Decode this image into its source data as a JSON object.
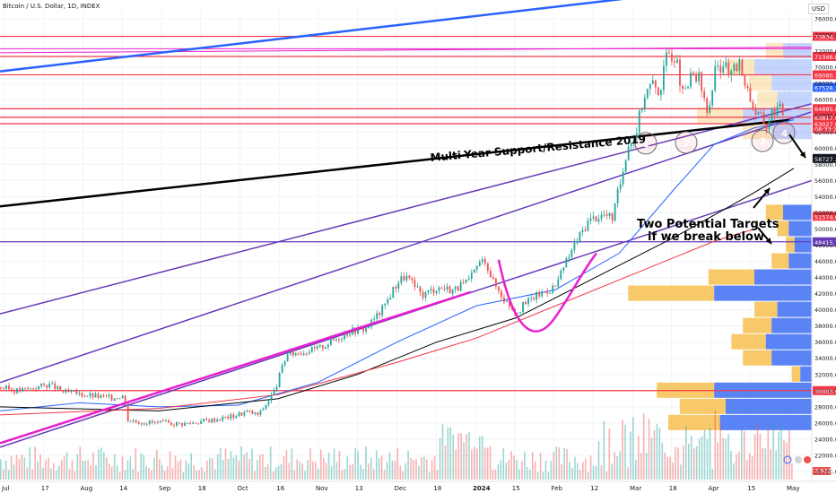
{
  "header": {
    "title": "Bitcoin / U.S. Dollar, 1D, INDEX",
    "currency": "USD"
  },
  "colors": {
    "up": "#26a69a",
    "down": "#ef5350",
    "accent": "#2962ff",
    "resistance": "#f23645",
    "channel": "#673ab7",
    "magenta": "#e91ecf",
    "trend_blue": "#2962ff",
    "ma_blue": "#2962ff",
    "ma_black": "#000000",
    "ma_red": "#f23645",
    "vp_orange": "#f7c04f",
    "vp_blue": "#3d6ff5"
  },
  "chart_data": {
    "type": "candlestick",
    "symbol": "Bitcoin / U.S. Dollar",
    "interval": "1D",
    "x_tick_labels": [
      "Jul",
      "17",
      "Aug",
      "14",
      "Sep",
      "18",
      "Oct",
      "16",
      "Nov",
      "13",
      "Dec",
      "18",
      "2024",
      "15",
      "Feb",
      "12",
      "Mar",
      "18",
      "Apr",
      "15",
      "May"
    ],
    "y_tick_labels": [
      "76000.00",
      "74000.00",
      "72000.00",
      "70000.00",
      "68000.00",
      "66000.00",
      "64000.00",
      "62000.00",
      "60000.00",
      "58000.00",
      "56000.00",
      "54000.00",
      "52000.00",
      "50000.00",
      "48000.00",
      "46000.00",
      "44000.00",
      "42000.00",
      "40000.00",
      "38000.00",
      "36000.00",
      "34000.00",
      "32000.00",
      "30000.00",
      "28000.00",
      "26000.00",
      "24000.00",
      "22000.00",
      "20000.00"
    ],
    "ylim": [
      19000,
      77000
    ],
    "close_path": [
      [
        0,
        30400
      ],
      [
        0.02,
        30000
      ],
      [
        0.04,
        30300
      ],
      [
        0.06,
        30800
      ],
      [
        0.08,
        29800
      ],
      [
        0.1,
        29600
      ],
      [
        0.12,
        29300
      ],
      [
        0.14,
        29100
      ],
      [
        0.155,
        29500
      ],
      [
        0.16,
        26500
      ],
      [
        0.17,
        26200
      ],
      [
        0.2,
        26000
      ],
      [
        0.23,
        25900
      ],
      [
        0.26,
        26300
      ],
      [
        0.29,
        26800
      ],
      [
        0.31,
        27400
      ],
      [
        0.325,
        27000
      ],
      [
        0.335,
        28500
      ],
      [
        0.345,
        30000
      ],
      [
        0.36,
        34500
      ],
      [
        0.38,
        34800
      ],
      [
        0.4,
        35200
      ],
      [
        0.42,
        36300
      ],
      [
        0.44,
        37400
      ],
      [
        0.46,
        37700
      ],
      [
        0.48,
        40000
      ],
      [
        0.5,
        43500
      ],
      [
        0.51,
        44200
      ],
      [
        0.53,
        41800
      ],
      [
        0.55,
        42800
      ],
      [
        0.57,
        42500
      ],
      [
        0.59,
        43500
      ],
      [
        0.6,
        45500
      ],
      [
        0.61,
        46300
      ],
      [
        0.62,
        43500
      ],
      [
        0.635,
        41200
      ],
      [
        0.65,
        39800
      ],
      [
        0.67,
        41500
      ],
      [
        0.69,
        42500
      ],
      [
        0.7,
        43000
      ],
      [
        0.71,
        45500
      ],
      [
        0.725,
        48500
      ],
      [
        0.74,
        51000
      ],
      [
        0.75,
        51500
      ],
      [
        0.76,
        51800
      ],
      [
        0.77,
        51300
      ],
      [
        0.78,
        55500
      ],
      [
        0.79,
        60500
      ],
      [
        0.8,
        62000
      ],
      [
        0.81,
        66500
      ],
      [
        0.82,
        68000
      ],
      [
        0.83,
        67000
      ],
      [
        0.84,
        72000
      ],
      [
        0.85,
        71300
      ],
      [
        0.86,
        66000
      ],
      [
        0.87,
        69000
      ],
      [
        0.88,
        68500
      ],
      [
        0.89,
        64000
      ],
      [
        0.9,
        69500
      ],
      [
        0.91,
        70500
      ],
      [
        0.92,
        69000
      ],
      [
        0.93,
        70500
      ],
      [
        0.94,
        67500
      ],
      [
        0.95,
        64500
      ],
      [
        0.96,
        63500
      ],
      [
        0.965,
        62500
      ],
      [
        0.97,
        64500
      ],
      [
        0.98,
        65000
      ],
      [
        0.99,
        63800
      ],
      [
        1,
        64300
      ]
    ],
    "price_labels": [
      {
        "value": 73834.14,
        "text": "73834.14",
        "color": "#f23645"
      },
      {
        "value": 71346.82,
        "text": "71346.82",
        "color": "#f23645"
      },
      {
        "value": 69080.18,
        "text": "69080.18",
        "color": "#f23645"
      },
      {
        "value": 67528.39,
        "text": "67528.39",
        "color": "#2962ff"
      },
      {
        "value": 64885.8,
        "text": "64885.80",
        "color": "#f23645"
      },
      {
        "value": 63817.94,
        "text": "63817.94",
        "color": "#f23645"
      },
      {
        "value": 63027.8,
        "text": "63027.80",
        "color": "#f23645"
      },
      {
        "value": 62400,
        "text": "08:33:17",
        "color": "#f23645"
      },
      {
        "value": 58727.32,
        "text": "58727.32",
        "color": "#131722"
      },
      {
        "value": 51574.0,
        "text": "51574.00",
        "color": "#f23645"
      },
      {
        "value": 48415.13,
        "text": "48415.13",
        "color": "#673ab7"
      },
      {
        "value": 30003.61,
        "text": "30003.61",
        "color": "#f23645"
      }
    ],
    "volume_label": "3.922K",
    "horizontal_levels": [
      {
        "value": 73834.14,
        "color": "#f23645"
      },
      {
        "value": 71346.82,
        "color": "#f23645"
      },
      {
        "value": 69080.18,
        "color": "#f23645"
      },
      {
        "value": 64885.8,
        "color": "#f23645"
      },
      {
        "value": 63817.94,
        "color": "#f23645"
      },
      {
        "value": 63027.8,
        "color": "#f23645"
      },
      {
        "value": 48415.13,
        "color": "#673ab7"
      },
      {
        "value": 30003.61,
        "color": "#f23645"
      }
    ],
    "annotations": [
      {
        "text": "Multi-Year Support/Resistance 2019"
      },
      {
        "text": "Two Potential Targets"
      },
      {
        "text": "if we break below"
      }
    ],
    "circle_numbers": [
      "1",
      "2",
      "3",
      "4"
    ],
    "volume_profile": [
      {
        "price": 72000,
        "up": 6,
        "down": 10
      },
      {
        "price": 70000,
        "up": 10,
        "down": 20
      },
      {
        "price": 68000,
        "up": 8,
        "down": 14
      },
      {
        "price": 66000,
        "up": 7,
        "down": 12
      },
      {
        "price": 64000,
        "up": 16,
        "down": 24
      },
      {
        "price": 62000,
        "up": 10,
        "down": 14
      },
      {
        "price": 52000,
        "up": 6,
        "down": 10
      },
      {
        "price": 50000,
        "up": 4,
        "down": 8
      },
      {
        "price": 48000,
        "up": 3,
        "down": 6
      },
      {
        "price": 46000,
        "up": 6,
        "down": 8
      },
      {
        "price": 44000,
        "up": 16,
        "down": 20
      },
      {
        "price": 42000,
        "up": 30,
        "down": 34
      },
      {
        "price": 40000,
        "up": 8,
        "down": 12
      },
      {
        "price": 38000,
        "up": 10,
        "down": 14
      },
      {
        "price": 36000,
        "up": 12,
        "down": 16
      },
      {
        "price": 34000,
        "up": 10,
        "down": 14
      },
      {
        "price": 32000,
        "up": 3,
        "down": 4
      },
      {
        "price": 30000,
        "up": 20,
        "down": 34
      },
      {
        "price": 28000,
        "up": 16,
        "down": 30
      },
      {
        "price": 26000,
        "up": 18,
        "down": 32
      }
    ]
  }
}
